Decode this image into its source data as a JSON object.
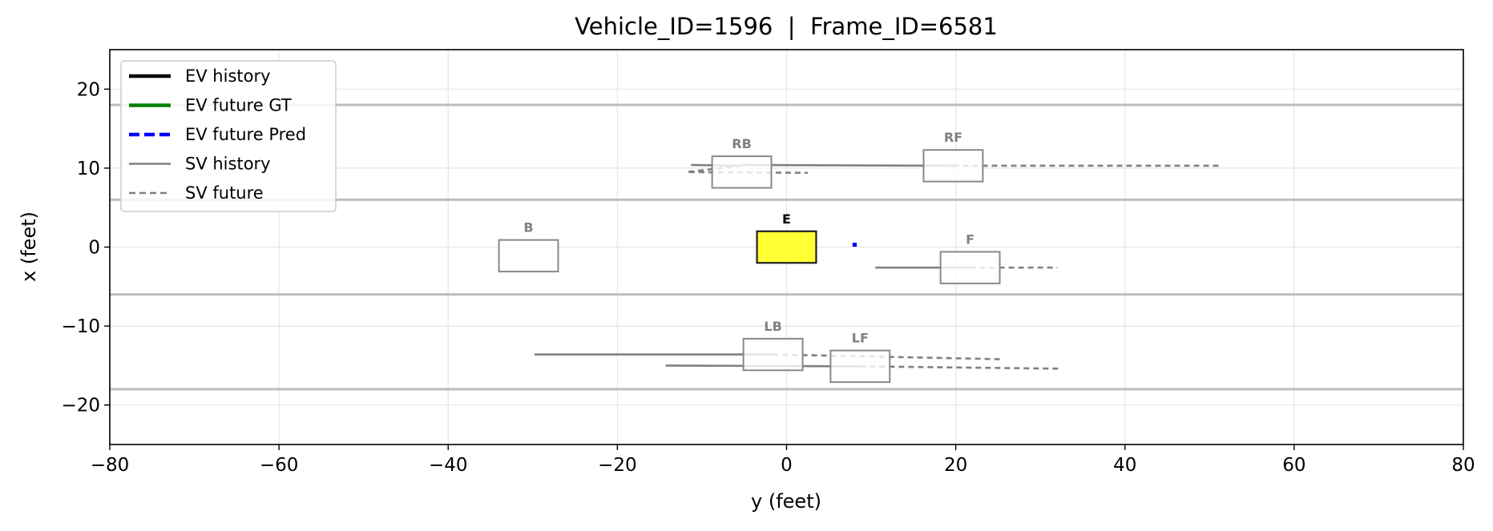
{
  "chart_data": {
    "type": "line",
    "title": "Vehicle_ID=1596  |  Frame_ID=6581",
    "xlabel": "y (feet)",
    "ylabel": "x (feet)",
    "xlim": [
      -80,
      80
    ],
    "ylim": [
      -25,
      25
    ],
    "xticks": [
      -80,
      -60,
      -40,
      -20,
      0,
      20,
      40,
      60,
      80
    ],
    "yticks": [
      -20,
      -10,
      0,
      10,
      20
    ],
    "xtick_labels": [
      "−80",
      "−60",
      "−40",
      "−20",
      "0",
      "20",
      "40",
      "60",
      "80"
    ],
    "ytick_labels": [
      "−20",
      "−10",
      "0",
      "10",
      "20"
    ],
    "grid": true,
    "legend_position": "top-left",
    "lane_lines": [
      18,
      6,
      -6,
      -18
    ],
    "legend": [
      {
        "label": "EV history",
        "color": "#000000",
        "style": "solid-thick"
      },
      {
        "label": "EV future GT",
        "color": "#008000",
        "style": "solid-thick"
      },
      {
        "label": "EV future Pred",
        "color": "#0000ff",
        "style": "dashed-thick"
      },
      {
        "label": "SV history",
        "color": "#808080",
        "style": "solid"
      },
      {
        "label": "SV future",
        "color": "#808080",
        "style": "dashed"
      }
    ],
    "ego": {
      "label": "E",
      "center": [
        0,
        0
      ],
      "length": 7,
      "width": 4,
      "color": "#ffff33"
    },
    "ev_future_pred": [
      [
        7.8,
        0.3
      ],
      [
        8.3,
        0.3
      ]
    ],
    "vehicles": [
      {
        "label": "B",
        "center": [
          -30.5,
          -1.1
        ],
        "length": 7,
        "width": 4,
        "history": [],
        "future": []
      },
      {
        "label": "RB",
        "center": [
          -5.3,
          9.5
        ],
        "length": 7,
        "width": 4,
        "history": [
          [
            -11.3,
            10.4
          ],
          [
            -5.3,
            10.3
          ]
        ],
        "future": [
          [
            -5.3,
            10.3
          ],
          [
            -11.8,
            9.5
          ],
          [
            2.5,
            9.4
          ]
        ]
      },
      {
        "label": "RF",
        "center": [
          19.7,
          10.3
        ],
        "length": 7,
        "width": 4,
        "history": [
          [
            -5.3,
            10.4
          ],
          [
            19.7,
            10.3
          ]
        ],
        "future": [
          [
            19.7,
            10.3
          ],
          [
            51.5,
            10.3
          ]
        ]
      },
      {
        "label": "F",
        "center": [
          21.7,
          -2.6
        ],
        "length": 7,
        "width": 4,
        "history": [
          [
            10.5,
            -2.6
          ],
          [
            21.7,
            -2.6
          ]
        ],
        "future": [
          [
            21.7,
            -2.6
          ],
          [
            32,
            -2.6
          ]
        ]
      },
      {
        "label": "LB",
        "center": [
          -1.6,
          -13.6
        ],
        "length": 7,
        "width": 4,
        "history": [
          [
            -29.8,
            -13.6
          ],
          [
            -1.6,
            -13.6
          ]
        ],
        "future": [
          [
            -1.6,
            -13.6
          ],
          [
            25.3,
            -14.2
          ]
        ]
      },
      {
        "label": "LF",
        "center": [
          8.7,
          -15.1
        ],
        "length": 7,
        "width": 4,
        "history": [
          [
            -14.3,
            -15
          ],
          [
            8.7,
            -15.1
          ]
        ],
        "future": [
          [
            8.7,
            -15.1
          ],
          [
            32.3,
            -15.4
          ]
        ]
      }
    ]
  }
}
